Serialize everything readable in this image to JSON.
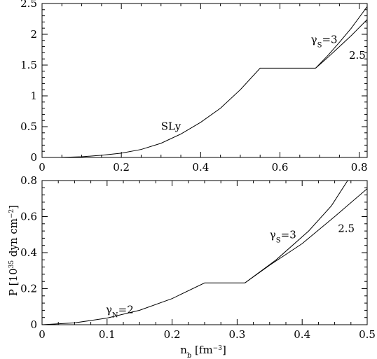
{
  "chart_data": [
    {
      "type": "line",
      "xlim": [
        0,
        0.82
      ],
      "ylim": [
        0,
        2.5
      ],
      "x_ticks": [
        0,
        0.2,
        0.4,
        0.6,
        0.8
      ],
      "x_tick_labels": [
        "0",
        "0.2",
        "0.4",
        "0.6",
        "0.8"
      ],
      "y_ticks": [
        0,
        0.5,
        1,
        1.5,
        2,
        2.5
      ],
      "y_tick_labels": [
        "0",
        "0.5",
        "1",
        "1.5",
        "2",
        "2.5"
      ],
      "series": [
        {
          "name": "SLy",
          "x": [
            0,
            0.05,
            0.1,
            0.15,
            0.2,
            0.25,
            0.3,
            0.35,
            0.4,
            0.45,
            0.5,
            0.55,
            0.69
          ],
          "y": [
            0,
            0.002,
            0.012,
            0.035,
            0.07,
            0.13,
            0.23,
            0.38,
            0.57,
            0.8,
            1.1,
            1.45,
            1.45
          ]
        },
        {
          "name": "γS=3",
          "x": [
            0.69,
            0.72,
            0.75,
            0.78,
            0.82
          ],
          "y": [
            1.45,
            1.65,
            1.87,
            2.1,
            2.45
          ]
        },
        {
          "name": "2.5",
          "x": [
            0.69,
            0.72,
            0.75,
            0.78,
            0.82
          ],
          "y": [
            1.45,
            1.62,
            1.8,
            1.98,
            2.24
          ]
        }
      ],
      "annotations": [
        {
          "text": "SLy",
          "x": 0.3,
          "y": 0.45
        },
        {
          "text_main": "γ",
          "text_sub": "S",
          "text_tail": "=3",
          "x": 0.678,
          "y": 1.86
        },
        {
          "text": "2.5",
          "x": 0.774,
          "y": 1.6
        }
      ]
    },
    {
      "type": "line",
      "xlim": [
        0,
        0.5
      ],
      "ylim": [
        0,
        0.8
      ],
      "x_ticks": [
        0,
        0.1,
        0.2,
        0.3,
        0.4,
        0.5
      ],
      "x_tick_labels": [
        "0",
        "0.1",
        "0.2",
        "0.3",
        "0.4",
        "0.5"
      ],
      "y_ticks": [
        0,
        0.2,
        0.4,
        0.6,
        0.8
      ],
      "y_tick_labels": [
        "0",
        "0.2",
        "0.4",
        "0.6",
        "0.8"
      ],
      "series": [
        {
          "name": "γN=2",
          "x": [
            0,
            0.05,
            0.1,
            0.15,
            0.2,
            0.25,
            0.312
          ],
          "y": [
            0,
            0.01,
            0.037,
            0.08,
            0.145,
            0.232,
            0.232
          ]
        },
        {
          "name": "γS=3",
          "x": [
            0.312,
            0.36,
            0.41,
            0.445,
            0.47
          ],
          "y": [
            0.232,
            0.36,
            0.52,
            0.66,
            0.8
          ]
        },
        {
          "name": "2.5",
          "x": [
            0.312,
            0.35,
            0.4,
            0.45,
            0.5
          ],
          "y": [
            0.232,
            0.33,
            0.45,
            0.6,
            0.755
          ]
        }
      ],
      "annotations": [
        {
          "text_main": "γ",
          "text_sub": "N",
          "text_tail": "=2",
          "x": 0.098,
          "y": 0.065
        },
        {
          "text_main": "γ",
          "text_sub": "S",
          "text_tail": "=3",
          "x": 0.35,
          "y": 0.48
        },
        {
          "text": "2.5",
          "x": 0.455,
          "y": 0.515
        }
      ]
    }
  ],
  "axis_labels": {
    "y_main": "P [10",
    "y_sup": "35",
    "y_mid": " dyn cm",
    "y_sup2": "−2",
    "y_end": "]",
    "x_main": "n",
    "x_sub": "b",
    "x_mid": " [fm",
    "x_sup": "−3",
    "x_end": "]"
  }
}
